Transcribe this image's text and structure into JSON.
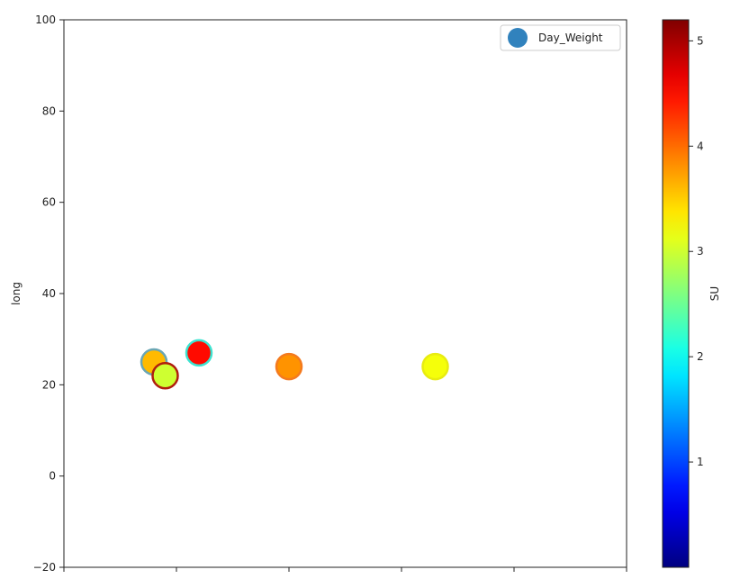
{
  "chart_data": {
    "type": "scatter",
    "title": "",
    "xlabel": "",
    "ylabel": "long",
    "ylim": [
      -20,
      100
    ],
    "y_ticks": [
      -20,
      0,
      20,
      40,
      60,
      80,
      100
    ],
    "y_tick_labels": [
      "−20",
      "0",
      "20",
      "40",
      "60",
      "80",
      "100"
    ],
    "x_tick_count": 6,
    "grid": false,
    "legend": {
      "placement": "top-right",
      "entries": [
        {
          "label": "Day_Weight",
          "marker_color": "#3182bd"
        }
      ]
    },
    "colorbar": {
      "label": "SU",
      "colormap": "jet",
      "range": [
        0,
        5.2
      ],
      "ticks": [
        1,
        2,
        3,
        4,
        5
      ],
      "tick_labels": [
        "1",
        "2",
        "3",
        "4",
        "5"
      ]
    },
    "series": [
      {
        "points": [
          {
            "x": 0.4,
            "y": 25,
            "su": 3.6,
            "edge_color": "#6aa6b4"
          },
          {
            "x": 0.45,
            "y": 22,
            "su": 3.0,
            "edge_color": "#b01e0e"
          },
          {
            "x": 0.6,
            "y": 27,
            "su": 4.5,
            "edge_color": "#3de3d0"
          },
          {
            "x": 1.0,
            "y": 24,
            "su": 3.8,
            "edge_color": "#f47a1e"
          },
          {
            "x": 1.65,
            "y": 24,
            "su": 3.2,
            "edge_color": "#e8ec10"
          }
        ]
      }
    ],
    "xlim": [
      0,
      2.5
    ]
  }
}
